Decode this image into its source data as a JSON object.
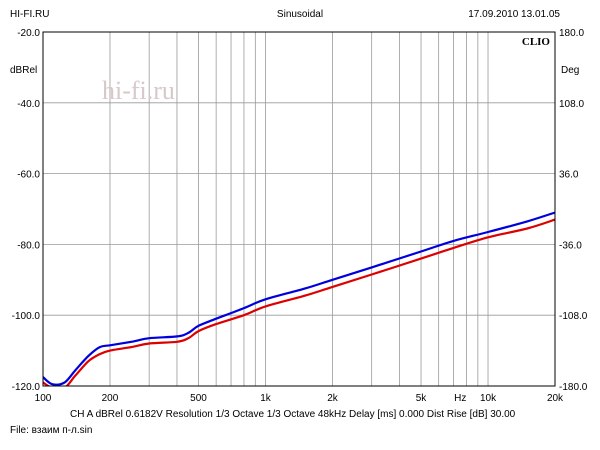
{
  "header": {
    "left": "HI-FI.RU",
    "center": "Sinusoidal",
    "right": "17.09.2010 13.01.05"
  },
  "watermark": "hi-fi.ru",
  "chart_data": {
    "type": "line",
    "brand": "CLIO",
    "ylabel_left": "dBRel",
    "ylabel_right": "Deg",
    "xscale": "log",
    "xlim": [
      100,
      20000
    ],
    "ylim": [
      -120,
      -20
    ],
    "ylim_right": [
      -180,
      180
    ],
    "grid": true,
    "x_ticks": [
      {
        "value": 100,
        "label": "100"
      },
      {
        "value": 200,
        "label": "200"
      },
      {
        "value": 500,
        "label": "500"
      },
      {
        "value": 1000,
        "label": "1k"
      },
      {
        "value": 2000,
        "label": "2k"
      },
      {
        "value": 5000,
        "label": "5k"
      },
      {
        "value": 7500,
        "label": "Hz"
      },
      {
        "value": 10000,
        "label": "10k"
      },
      {
        "value": 20000,
        "label": "20k"
      }
    ],
    "x_gridlines": [
      100,
      200,
      300,
      400,
      500,
      600,
      700,
      800,
      900,
      1000,
      2000,
      3000,
      4000,
      5000,
      6000,
      7000,
      8000,
      9000,
      10000,
      20000
    ],
    "y_ticks_left": [
      "-20.0",
      "-40.0",
      "-60.0",
      "-80.0",
      "-100.0",
      "-120.0"
    ],
    "y_ticks_right": [
      "180.0",
      "108.0",
      "36.0",
      "-36.0",
      "-108.0",
      "-180.0"
    ],
    "series": [
      {
        "color": "#0000dd",
        "points": [
          [
            100,
            -117.5
          ],
          [
            110,
            -119.5
          ],
          [
            125,
            -119
          ],
          [
            140,
            -115.5
          ],
          [
            160,
            -111.5
          ],
          [
            180,
            -109
          ],
          [
            200,
            -108.5
          ],
          [
            250,
            -107.5
          ],
          [
            300,
            -106.5
          ],
          [
            400,
            -106
          ],
          [
            450,
            -105
          ],
          [
            500,
            -103
          ],
          [
            600,
            -101
          ],
          [
            800,
            -98
          ],
          [
            1000,
            -95.5
          ],
          [
            1500,
            -92.5
          ],
          [
            2000,
            -90
          ],
          [
            3000,
            -86.5
          ],
          [
            5000,
            -82
          ],
          [
            7000,
            -79
          ],
          [
            10000,
            -76.5
          ],
          [
            15000,
            -73.5
          ],
          [
            20000,
            -71
          ]
        ]
      },
      {
        "color": "#dd0000",
        "points": [
          [
            100,
            -119
          ],
          [
            110,
            -120.5
          ],
          [
            125,
            -120.5
          ],
          [
            140,
            -117
          ],
          [
            160,
            -113
          ],
          [
            180,
            -111
          ],
          [
            200,
            -110
          ],
          [
            250,
            -109
          ],
          [
            300,
            -108
          ],
          [
            400,
            -107.5
          ],
          [
            450,
            -106.5
          ],
          [
            500,
            -104.5
          ],
          [
            600,
            -102.5
          ],
          [
            800,
            -100
          ],
          [
            1000,
            -97.5
          ],
          [
            1500,
            -94.5
          ],
          [
            2000,
            -92
          ],
          [
            3000,
            -88.5
          ],
          [
            5000,
            -84
          ],
          [
            7000,
            -81
          ],
          [
            10000,
            -78
          ],
          [
            15000,
            -75.5
          ],
          [
            20000,
            -73
          ]
        ]
      }
    ]
  },
  "footer": {
    "line1": "CH A   dBRel 0.6182V  Resolution 1/3 Octave   1/3 Octave   48kHz   Delay [ms] 0.000   Dist Rise [dB] 30.00",
    "line2": "File: взаим п-л.sin"
  }
}
